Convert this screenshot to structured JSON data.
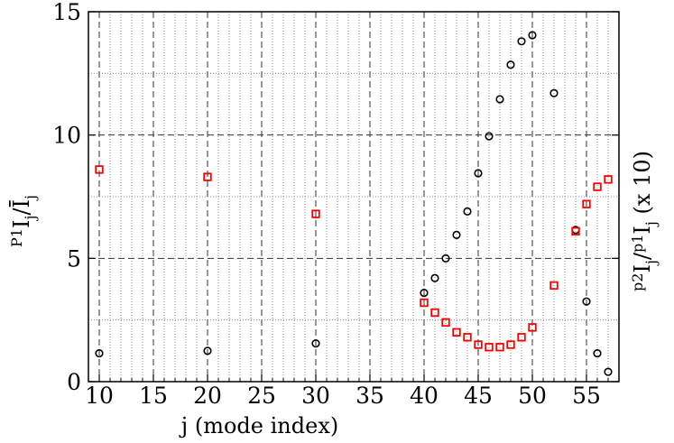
{
  "chart_data": {
    "type": "scatter",
    "title": "",
    "xlabel": "j (mode index)",
    "ylabel_left": {
      "prefix": "P1",
      "main": "I",
      "sub1": "j",
      "slash": "/",
      "bar": "Ī",
      "sub2": "j"
    },
    "ylabel_right": {
      "prefix1": "p2",
      "main1": "I",
      "sub1": "j",
      "slash": "/",
      "prefix2": "p1",
      "main2": "I",
      "sub2": "j",
      "suffix": " (x 10)"
    },
    "xlim": [
      9,
      58
    ],
    "ylim": [
      0,
      15
    ],
    "xticks": [
      10,
      15,
      20,
      25,
      30,
      35,
      40,
      45,
      50,
      55
    ],
    "yticks": [
      0,
      5,
      10,
      15
    ],
    "grid": true,
    "legend": "none",
    "series": [
      {
        "marker": "circle",
        "color": "#000000",
        "points": [
          [
            10,
            1.15
          ],
          [
            20,
            1.25
          ],
          [
            30,
            1.55
          ],
          [
            40,
            3.6
          ],
          [
            41,
            4.2
          ],
          [
            42,
            5.0
          ],
          [
            43,
            5.95
          ],
          [
            44,
            6.9
          ],
          [
            45,
            8.45
          ],
          [
            46,
            9.95
          ],
          [
            47,
            11.45
          ],
          [
            48,
            12.85
          ],
          [
            49,
            13.8
          ],
          [
            50,
            14.05
          ],
          [
            52,
            11.7
          ],
          [
            54,
            6.15
          ],
          [
            55,
            3.25
          ],
          [
            56,
            1.15
          ],
          [
            57,
            0.4
          ]
        ]
      },
      {
        "marker": "square",
        "color": "#ff0000",
        "points": [
          [
            10,
            8.6
          ],
          [
            20,
            8.3
          ],
          [
            30,
            6.8
          ],
          [
            40,
            3.2
          ],
          [
            41,
            2.8
          ],
          [
            42,
            2.4
          ],
          [
            43,
            2.0
          ],
          [
            44,
            1.8
          ],
          [
            45,
            1.5
          ],
          [
            46,
            1.4
          ],
          [
            47,
            1.4
          ],
          [
            48,
            1.5
          ],
          [
            49,
            1.8
          ],
          [
            50,
            2.2
          ],
          [
            52,
            3.9
          ],
          [
            54,
            6.1
          ],
          [
            55,
            7.2
          ],
          [
            56,
            7.9
          ],
          [
            57,
            8.2
          ]
        ]
      }
    ]
  }
}
